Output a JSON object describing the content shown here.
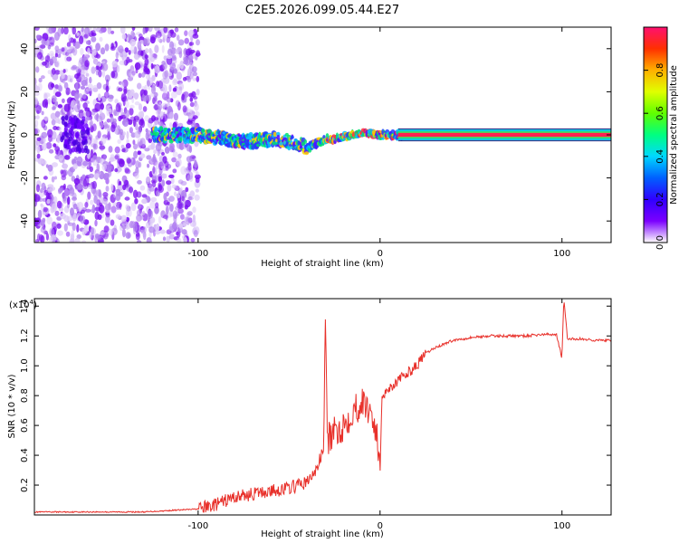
{
  "title": "C2E5.2026.099.05.44.E27",
  "chart_data": [
    {
      "type": "heatmap",
      "xlabel": "Height of straight line (km)",
      "ylabel": "Frequency (Hz)",
      "xlim": [
        -190,
        127
      ],
      "ylim": [
        -50,
        50
      ],
      "xticks": [
        -100,
        0,
        100
      ],
      "yticks": [
        -40,
        -20,
        0,
        20,
        40
      ],
      "colorbar": {
        "label": "Normalized spectral amplitude",
        "range": [
          0,
          1
        ],
        "ticks": [
          "0.0",
          "0.2",
          "0.4",
          "0.6",
          "0.8"
        ],
        "tick_values": [
          0,
          0.2,
          0.4,
          0.6,
          0.8
        ]
      },
      "ridge": {
        "x": [
          -120,
          -100,
          -90,
          -80,
          -70,
          -60,
          -50,
          -40,
          -35,
          -30,
          -25,
          -20,
          -15,
          -10,
          -5,
          0,
          5,
          10,
          20,
          40,
          60,
          80,
          100,
          127
        ],
        "y": [
          0,
          0,
          -1,
          -3,
          -3,
          -2,
          -3,
          -6,
          -4,
          -2,
          -2,
          -1,
          0,
          1,
          0,
          0,
          0,
          0,
          0,
          0,
          0,
          0,
          0,
          0
        ]
      }
    },
    {
      "type": "line",
      "xlabel": "Height of straight line (km)",
      "ylabel": "SNR (10 * v/v)",
      "y_scale_label": "(x10",
      "y_scale_exp": "4",
      "y_scale_close": ")",
      "xlim": [
        -190,
        127
      ],
      "ylim": [
        0,
        1.45
      ],
      "xticks": [
        -100,
        0,
        100
      ],
      "yticks": [
        0.2,
        0.4,
        0.6,
        0.8,
        1.0,
        1.2,
        1.4
      ],
      "ytick_labels": [
        "0.2",
        "0.4",
        "0.6",
        "0.8",
        "1.0",
        "1.2",
        "1.4"
      ],
      "series": [
        {
          "name": "SNR",
          "color": "#e8302a",
          "x": [
            -190,
            -170,
            -150,
            -130,
            -115,
            -100,
            -90,
            -80,
            -70,
            -60,
            -50,
            -45,
            -40,
            -35,
            -31,
            -30,
            -29,
            -25,
            -20,
            -15,
            -10,
            -5,
            -2,
            0,
            1,
            5,
            10,
            15,
            20,
            25,
            30,
            40,
            50,
            60,
            70,
            80,
            90,
            97,
            100,
            101,
            103,
            110,
            120,
            127
          ],
          "y": [
            0.02,
            0.02,
            0.02,
            0.02,
            0.03,
            0.04,
            0.07,
            0.12,
            0.14,
            0.16,
            0.18,
            0.2,
            0.22,
            0.3,
            0.45,
            1.38,
            0.5,
            0.55,
            0.6,
            0.7,
            0.75,
            0.7,
            0.55,
            0.28,
            0.8,
            0.85,
            0.9,
            0.95,
            1.0,
            1.08,
            1.12,
            1.17,
            1.19,
            1.2,
            1.2,
            1.2,
            1.21,
            1.21,
            1.05,
            1.45,
            1.18,
            1.18,
            1.17,
            1.17
          ]
        }
      ]
    }
  ]
}
